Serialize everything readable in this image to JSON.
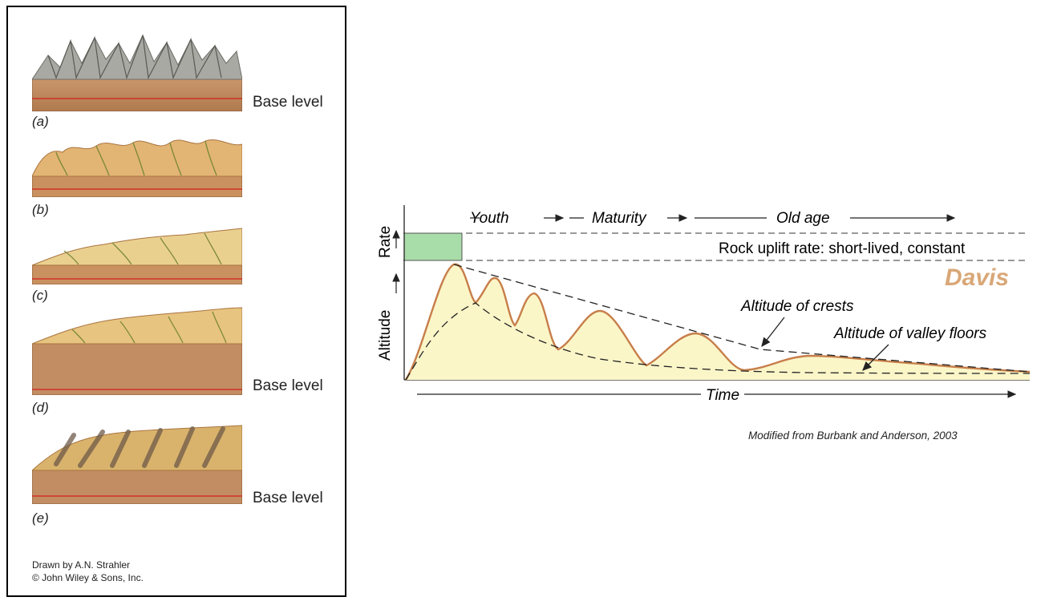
{
  "left_panel": {
    "stages": [
      {
        "letter": "(a)",
        "base_label": "Base level",
        "style": "rugged"
      },
      {
        "letter": "(b)",
        "base_label": "",
        "style": "hilly"
      },
      {
        "letter": "(c)",
        "base_label": "",
        "style": "peneplain"
      },
      {
        "letter": "(d)",
        "base_label": "Base level",
        "style": "uplifted"
      },
      {
        "letter": "(e)",
        "base_label": "Base level",
        "style": "rejuvenated"
      }
    ],
    "credit_line1": "Drawn by A.N. Strahler",
    "credit_line2": "© John Wiley & Sons, Inc."
  },
  "diagram": {
    "stage_youth": "Youth",
    "stage_maturity": "Maturity",
    "stage_old_age": "Old age",
    "rate_axis_label": "Rate",
    "altitude_axis_label": "Altitude",
    "time_axis_label": "Time",
    "uplift_label": "Rock uplift rate: short-lived, constant",
    "model_name": "Davis",
    "crests_label": "Altitude of crests",
    "valleys_label": "Altitude of valley floors",
    "source_note": "Modified from Burbank and Anderson, 2003",
    "colors": {
      "curve": "#c77e4a",
      "fill": "#fbf6c8",
      "uplift_box": "#a8dca8",
      "model_name": "#d9a777",
      "base_level_line": "#d21f1f"
    }
  }
}
